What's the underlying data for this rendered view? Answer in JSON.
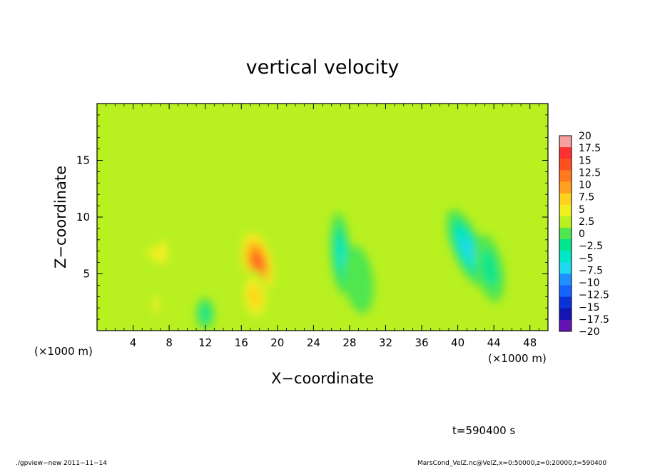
{
  "chart_data": {
    "type": "heatmap",
    "title": "vertical velocity",
    "xlabel": "X−coordinate",
    "ylabel": "Z−coordinate",
    "x_unit": "(×1000 m)",
    "y_unit": "(×1000 m)",
    "xlim": [
      0,
      50
    ],
    "ylim": [
      0,
      20
    ],
    "x_ticks": [
      4,
      8,
      12,
      16,
      20,
      24,
      28,
      32,
      36,
      40,
      44,
      48
    ],
    "y_ticks": [
      5,
      10,
      15
    ],
    "x_tick_labels": [
      "4",
      "8",
      "12",
      "16",
      "20",
      "24",
      "28",
      "32",
      "36",
      "40",
      "44",
      "48"
    ],
    "y_tick_labels": [
      "5",
      "10",
      "15"
    ],
    "colorbar": {
      "levels": [
        20,
        17.5,
        15,
        12.5,
        10,
        7.5,
        5,
        2.5,
        0,
        -2.5,
        -5,
        -7.5,
        -10,
        -12.5,
        -15,
        -17.5,
        -20
      ],
      "labels": [
        "20",
        "17.5",
        "15",
        "12.5",
        "10",
        "7.5",
        "5",
        "2.5",
        "0",
        "−2.5",
        "−5",
        "−7.5",
        "−10",
        "−12.5",
        "−15",
        "−17.5",
        "−20"
      ],
      "colors": [
        "#f7a0a0",
        "#ff3030",
        "#ff5020",
        "#ff7a1e",
        "#ffa020",
        "#ffd21e",
        "#f0f020",
        "#b8f020",
        "#50e650",
        "#00e68c",
        "#00e6c8",
        "#20d8f0",
        "#2090ff",
        "#1464ff",
        "#0a32d8",
        "#1414b4",
        "#6414b4"
      ]
    },
    "background_value": 0.5,
    "features": [
      {
        "x": 17.8,
        "z": 6.0,
        "value": 17,
        "sx": 1.9,
        "sz": 3.2,
        "tilt": 0.35
      },
      {
        "x": 17.5,
        "z": 3.0,
        "value": 9,
        "sx": 1.6,
        "sz": 2.4,
        "tilt": 0.2
      },
      {
        "x": 6.0,
        "z": 8.2,
        "value": 7,
        "sx": 2.2,
        "sz": 4.5,
        "tilt": 0.7
      },
      {
        "x": 6.5,
        "z": 2.3,
        "value": 7,
        "sx": 0.6,
        "sz": 1.4,
        "tilt": 0
      },
      {
        "x": 4.5,
        "z": 12.0,
        "value": 3.5,
        "sx": 3.0,
        "sz": 5.0,
        "tilt": 0.4
      },
      {
        "x": 12.5,
        "z": 7.0,
        "value": 3.5,
        "sx": 2.0,
        "sz": 5.0,
        "tilt": 0.6
      },
      {
        "x": 14.0,
        "z": 15.0,
        "value": 2.5,
        "sx": 5.0,
        "sz": 3.0,
        "tilt": 0
      },
      {
        "x": 12.0,
        "z": 1.5,
        "value": -5,
        "sx": 1.0,
        "sz": 1.4,
        "tilt": 0
      },
      {
        "x": 27.0,
        "z": 6.8,
        "value": -9,
        "sx": 1.1,
        "sz": 3.6,
        "tilt": 0.1
      },
      {
        "x": 29.0,
        "z": 4.5,
        "value": -4,
        "sx": 1.6,
        "sz": 3.0,
        "tilt": 0.2
      },
      {
        "x": 41.0,
        "z": 7.3,
        "value": -12,
        "sx": 1.6,
        "sz": 3.6,
        "tilt": 0.55
      },
      {
        "x": 43.5,
        "z": 5.5,
        "value": -5,
        "sx": 1.5,
        "sz": 3.0,
        "tilt": 0.3
      },
      {
        "x": 44.0,
        "z": 13.0,
        "value": -1,
        "sx": 2.5,
        "sz": 3.0,
        "tilt": 0
      }
    ]
  },
  "annotations": {
    "time": "t=590400 s",
    "footer_left": "./gpview−new  2011−11−14",
    "footer_right": "MarsCond_VelZ.nc@VelZ,x=0:50000,z=0:20000,t=590400"
  }
}
